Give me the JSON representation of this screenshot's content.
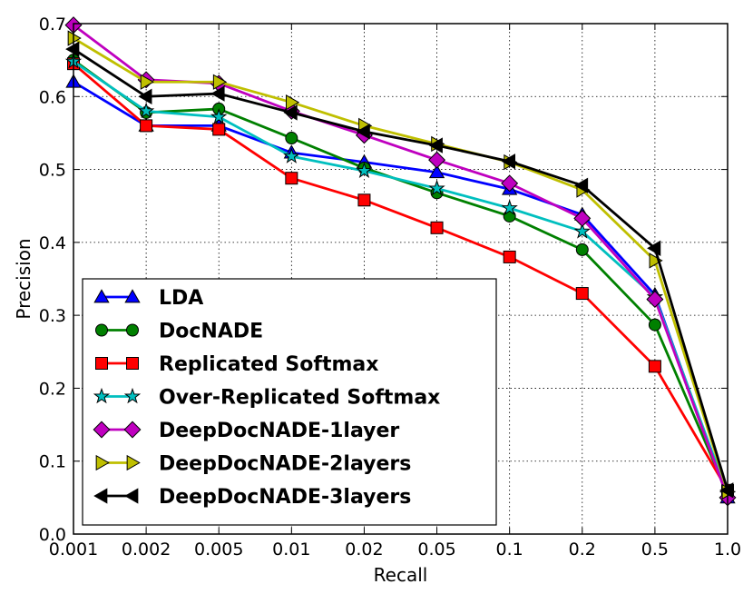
{
  "chart_data": {
    "type": "line",
    "title": "",
    "xlabel": "Recall",
    "ylabel": "Precision",
    "categories": [
      "0.001",
      "0.002",
      "0.005",
      "0.01",
      "0.02",
      "0.05",
      "0.1",
      "0.2",
      "0.5",
      "1.0"
    ],
    "ylim": [
      0,
      0.7
    ],
    "yticks": [
      "0.0",
      "0.1",
      "0.2",
      "0.3",
      "0.4",
      "0.5",
      "0.6",
      "0.7"
    ],
    "grid": true,
    "legend_position": "lower-left",
    "series": [
      {
        "name": "LDA",
        "color": "#0000ff",
        "marker": "triangle-up",
        "values": [
          0.62,
          0.56,
          0.56,
          0.523,
          0.51,
          0.496,
          0.473,
          0.438,
          0.328,
          0.05
        ]
      },
      {
        "name": "DocNADE",
        "color": "#008000",
        "marker": "circle",
        "values": [
          0.65,
          0.578,
          0.583,
          0.543,
          0.502,
          0.468,
          0.436,
          0.39,
          0.287,
          0.055
        ]
      },
      {
        "name": "Replicated Softmax",
        "color": "#ff0000",
        "marker": "square",
        "values": [
          0.645,
          0.56,
          0.555,
          0.488,
          0.458,
          0.42,
          0.38,
          0.33,
          0.23,
          0.06
        ]
      },
      {
        "name": "Over-Replicated Softmax",
        "color": "#00bfbf",
        "marker": "star",
        "values": [
          0.648,
          0.58,
          0.572,
          0.518,
          0.498,
          0.474,
          0.447,
          0.415,
          0.325,
          0.055
        ]
      },
      {
        "name": "DeepDocNADE-1layer",
        "color": "#bf00bf",
        "marker": "diamond",
        "values": [
          0.698,
          0.623,
          0.618,
          0.58,
          0.547,
          0.513,
          0.481,
          0.433,
          0.322,
          0.05
        ]
      },
      {
        "name": "DeepDocNADE-2layers",
        "color": "#bfbf00",
        "marker": "triangle-right",
        "values": [
          0.68,
          0.62,
          0.62,
          0.592,
          0.56,
          0.535,
          0.51,
          0.472,
          0.375,
          0.058
        ]
      },
      {
        "name": "DeepDocNADE-3layers",
        "color": "#000000",
        "marker": "triangle-left",
        "values": [
          0.665,
          0.6,
          0.604,
          0.578,
          0.552,
          0.533,
          0.511,
          0.478,
          0.392,
          0.06
        ]
      }
    ]
  }
}
